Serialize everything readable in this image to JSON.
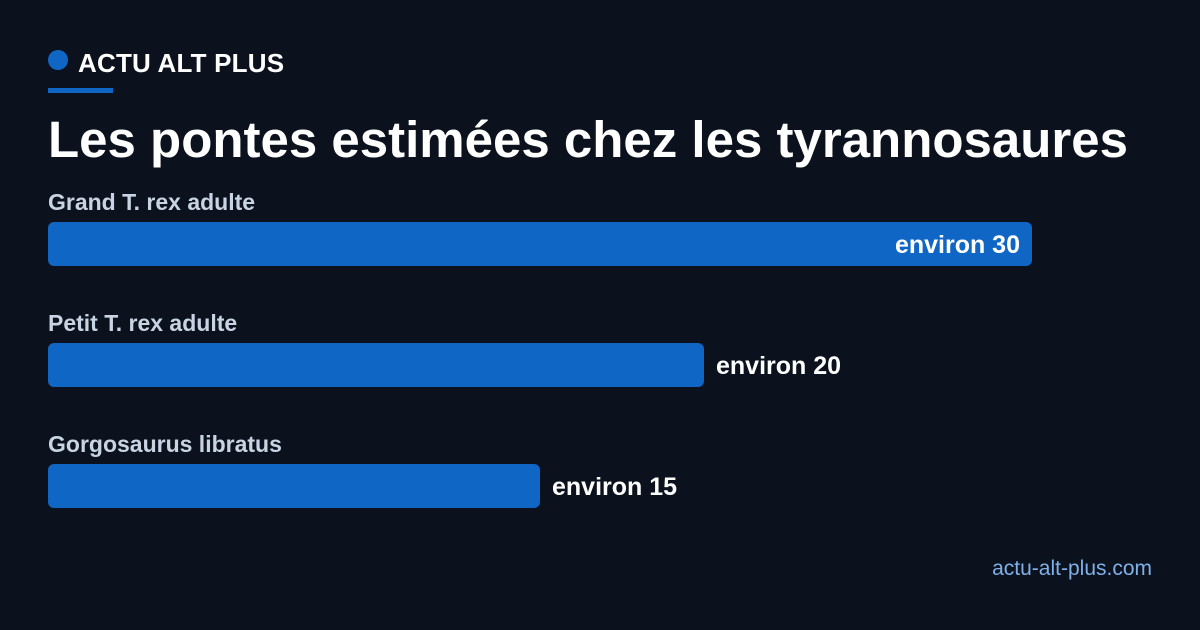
{
  "brand": {
    "name": "ACTU ALT PLUS",
    "accent_color": "#0f66c4"
  },
  "title": "Les pontes estimées chez les tyrannosaures",
  "source": "actu-alt-plus.com",
  "colors": {
    "background": "#0b121e",
    "bar": "#0f66c4",
    "category_text": "#c9d4e3",
    "value_text": "#ffffff",
    "source_text": "#7fb0e8"
  },
  "chart_data": {
    "type": "bar",
    "orientation": "horizontal",
    "categories": [
      "Grand T. rex adulte",
      "Petit T. rex adulte",
      "Gorgosaurus libratus"
    ],
    "values": [
      30,
      20,
      15
    ],
    "value_labels": [
      "environ 30",
      "environ 20",
      "environ 15"
    ],
    "xlim": [
      0,
      30
    ],
    "grid": false,
    "legend": "none",
    "title": "Les pontes estimées chez les tyrannosaures"
  }
}
